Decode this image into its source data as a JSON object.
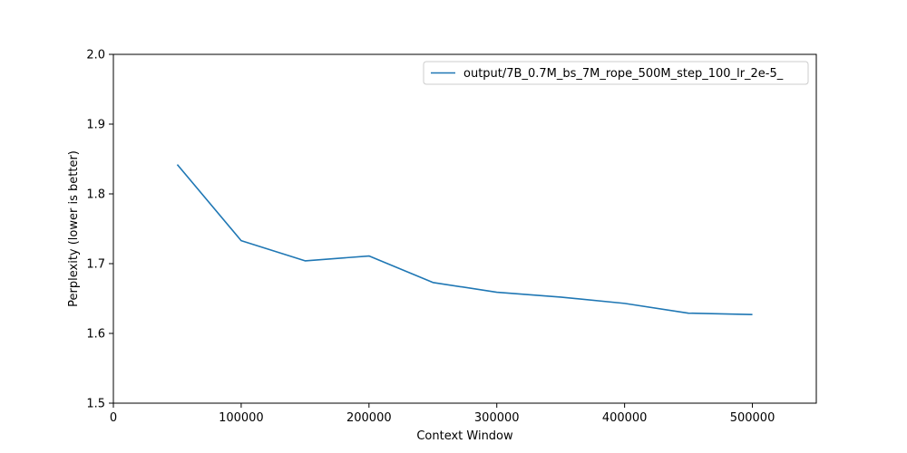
{
  "chart_data": {
    "type": "line",
    "title": "",
    "xlabel": "Context Window",
    "ylabel": "Perplexity (lower is better)",
    "xlim": [
      0,
      550000
    ],
    "ylim": [
      1.5,
      2.0
    ],
    "x_ticks": [
      0,
      100000,
      200000,
      300000,
      400000,
      500000
    ],
    "y_ticks": [
      1.5,
      1.6,
      1.7,
      1.8,
      1.9,
      2.0
    ],
    "x_tick_labels": [
      "0",
      "100000",
      "200000",
      "300000",
      "400000",
      "500000"
    ],
    "y_tick_labels": [
      "1.5",
      "1.6",
      "1.7",
      "1.8",
      "1.9",
      "2.0"
    ],
    "grid": false,
    "legend_position": "top-right",
    "series": [
      {
        "name": "output/7B_0.7M_bs_7M_rope_500M_step_100_lr_2e-5_",
        "color": "#1f77b4",
        "x": [
          50000,
          100000,
          150000,
          200000,
          250000,
          300000,
          350000,
          400000,
          450000,
          500000
        ],
        "y": [
          1.842,
          1.733,
          1.704,
          1.711,
          1.673,
          1.659,
          1.652,
          1.643,
          1.629,
          1.627
        ]
      }
    ]
  }
}
